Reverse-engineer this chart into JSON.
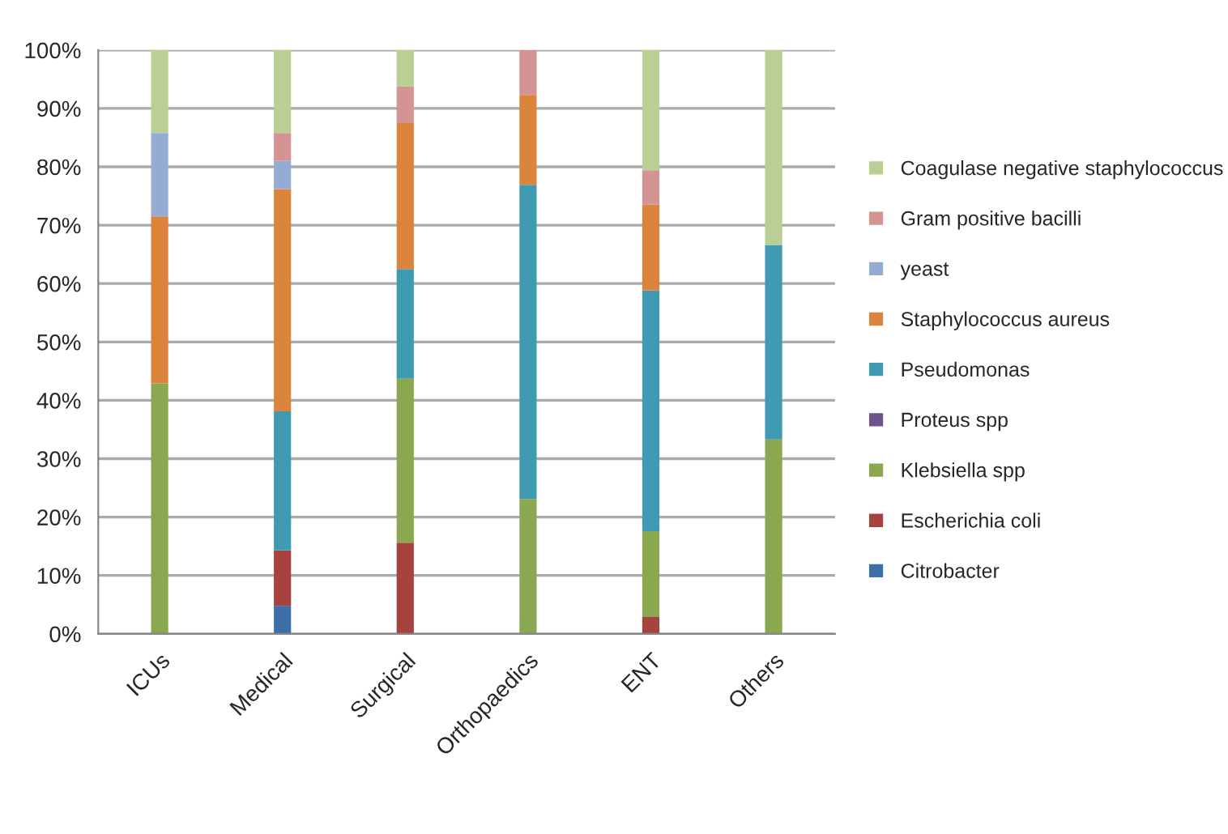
{
  "chart_data": {
    "type": "bar",
    "stacked": true,
    "categories": [
      "ICUs",
      "Medical",
      "Surgical",
      "Orthopaedics",
      "ENT",
      "Others"
    ],
    "series": [
      {
        "name": "Citrobacter",
        "color": "#3f6faa",
        "values": [
          0,
          4.8,
          0,
          0,
          0,
          0
        ]
      },
      {
        "name": "Escherichia coli",
        "color": "#a8423f",
        "values": [
          0,
          9.5,
          15.6,
          0,
          2.9,
          0
        ]
      },
      {
        "name": "Klebsiella spp",
        "color": "#8aa84f",
        "values": [
          42.9,
          0,
          28.1,
          23.1,
          14.7,
          33.3
        ]
      },
      {
        "name": "Proteus spp",
        "color": "#6e548d",
        "values": [
          0,
          0,
          0,
          0,
          0,
          0
        ]
      },
      {
        "name": "Pseudomonas",
        "color": "#409bb2",
        "values": [
          0,
          23.8,
          18.8,
          53.8,
          41.2,
          33.3
        ]
      },
      {
        "name": "Staphylococcus aureus",
        "color": "#dc843c",
        "values": [
          28.6,
          38.1,
          25,
          15.4,
          14.7,
          0
        ]
      },
      {
        "name": "yeast",
        "color": "#94acd4",
        "values": [
          14.3,
          4.8,
          0,
          0,
          0,
          0
        ]
      },
      {
        "name": "Gram positive bacilli",
        "color": "#d49493",
        "values": [
          0,
          4.8,
          6.3,
          7.7,
          5.9,
          0
        ]
      },
      {
        "name": "Coagulase negative staphylococcus",
        "color": "#bacf94",
        "values": [
          14.3,
          14.3,
          6.3,
          0,
          20.6,
          33.4
        ]
      }
    ],
    "ylim": [
      0,
      100
    ],
    "yticks": [
      {
        "value": 0,
        "label": "0%"
      },
      {
        "value": 10,
        "label": "10%"
      },
      {
        "value": 20,
        "label": "20%"
      },
      {
        "value": 30,
        "label": "30%"
      },
      {
        "value": 40,
        "label": "40%"
      },
      {
        "value": 50,
        "label": "50%"
      },
      {
        "value": 60,
        "label": "60%"
      },
      {
        "value": 70,
        "label": "70%"
      },
      {
        "value": 80,
        "label": "80%"
      },
      {
        "value": 90,
        "label": "90%"
      },
      {
        "value": 100,
        "label": "100%"
      }
    ],
    "grid": "y",
    "legend": "right"
  }
}
